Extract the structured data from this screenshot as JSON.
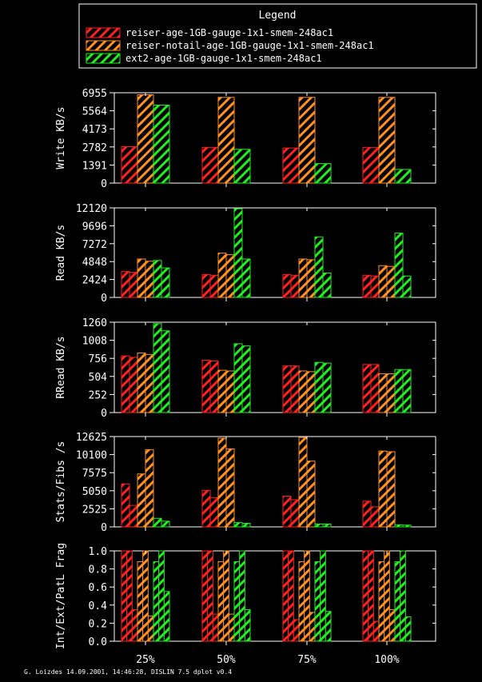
{
  "colors": {
    "background": "#000000",
    "axis": "#ffffff",
    "text": "#ffffff",
    "red": "#ff2020",
    "orange": "#ff9020",
    "green": "#20ee20"
  },
  "legend": {
    "title": "Legend",
    "entries": [
      {
        "label": "reiser-age-1GB-gauge-1x1-smem-248ac1",
        "color": "#ff2020"
      },
      {
        "label": "reiser-notail-age-1GB-gauge-1x1-smem-248ac1",
        "color": "#ff9020"
      },
      {
        "label": "ext2-age-1GB-gauge-1x1-smem-248ac1",
        "color": "#20ee20"
      }
    ]
  },
  "footer": "G. Loizdes 14.09.2001, 14:46:28, DISLIN 7.5 dplot v0.4",
  "chart_data": [
    {
      "type": "bar",
      "ylabel": "Write KB/s",
      "categories": [
        "25%",
        "50%",
        "75%",
        "100%"
      ],
      "ylim": [
        0,
        6955
      ],
      "yticks": [
        "0",
        "1391",
        "2782",
        "4173",
        "5564",
        "6955"
      ],
      "groups": [
        {
          "red": [
            2800
          ],
          "orange": [
            6800
          ],
          "green": [
            6000
          ]
        },
        {
          "red": [
            2750
          ],
          "orange": [
            6600
          ],
          "green": [
            2600
          ]
        },
        {
          "red": [
            2700
          ],
          "orange": [
            6600
          ],
          "green": [
            1500
          ]
        },
        {
          "red": [
            2750
          ],
          "orange": [
            6600
          ],
          "green": [
            1050
          ]
        }
      ]
    },
    {
      "type": "bar",
      "ylabel": "Read KB/s",
      "categories": [
        "25%",
        "50%",
        "75%",
        "100%"
      ],
      "ylim": [
        0,
        12120
      ],
      "yticks": [
        "0",
        "2424",
        "4848",
        "7272",
        "9696",
        "12120"
      ],
      "groups": [
        {
          "red": [
            3500,
            3400
          ],
          "orange": [
            5200,
            4900
          ],
          "green": [
            5000,
            4000
          ]
        },
        {
          "red": [
            3100,
            3000
          ],
          "orange": [
            6000,
            5800
          ],
          "green": [
            12000,
            5200
          ]
        },
        {
          "red": [
            3100,
            3000
          ],
          "orange": [
            5200,
            5100
          ],
          "green": [
            8200,
            3300
          ]
        },
        {
          "red": [
            3000,
            2900
          ],
          "orange": [
            4300,
            4200
          ],
          "green": [
            8700,
            2900
          ]
        }
      ]
    },
    {
      "type": "bar",
      "ylabel": "RRead KB/s",
      "categories": [
        "25%",
        "50%",
        "75%",
        "100%"
      ],
      "ylim": [
        0,
        1260
      ],
      "yticks": [
        "0",
        "252",
        "504",
        "756",
        "1008",
        "1260"
      ],
      "groups": [
        {
          "red": [
            790,
            770
          ],
          "orange": [
            830,
            810
          ],
          "green": [
            1240,
            1140
          ]
        },
        {
          "red": [
            730,
            720
          ],
          "orange": [
            590,
            580
          ],
          "green": [
            960,
            930
          ]
        },
        {
          "red": [
            650,
            650
          ],
          "orange": [
            580,
            570
          ],
          "green": [
            700,
            690
          ]
        },
        {
          "red": [
            670,
            670
          ],
          "orange": [
            540,
            540
          ],
          "green": [
            600,
            600
          ]
        }
      ]
    },
    {
      "type": "bar",
      "ylabel": "Stats/Fibs /s",
      "categories": [
        "25%",
        "50%",
        "75%",
        "100%"
      ],
      "ylim": [
        0,
        12625
      ],
      "yticks": [
        "0",
        "2525",
        "5050",
        "7575",
        "10100",
        "12625"
      ],
      "groups": [
        {
          "red": [
            6000,
            3000
          ],
          "orange": [
            7400,
            10800
          ],
          "green": [
            1200,
            800
          ]
        },
        {
          "red": [
            5100,
            4100
          ],
          "orange": [
            12400,
            10900
          ],
          "green": [
            600,
            500
          ]
        },
        {
          "red": [
            4300,
            3800
          ],
          "orange": [
            12500,
            9200
          ],
          "green": [
            400,
            400
          ]
        },
        {
          "red": [
            3600,
            2800
          ],
          "orange": [
            10600,
            10500
          ],
          "green": [
            300,
            250
          ]
        }
      ]
    },
    {
      "type": "bar",
      "ylabel": "Int/Ext/PatL Frag",
      "categories": [
        "25%",
        "50%",
        "75%",
        "100%"
      ],
      "ylim": [
        0,
        1.0
      ],
      "yticks": [
        "0.0",
        "0.2",
        "0.4",
        "0.6",
        "0.8",
        "1.0"
      ],
      "groups": [
        {
          "red": [
            1.0,
            1.0,
            0.35
          ],
          "orange": [
            0.88,
            1.0,
            0.28
          ],
          "green": [
            0.88,
            1.0,
            0.55
          ]
        },
        {
          "red": [
            1.0,
            1.0,
            0.3
          ],
          "orange": [
            0.88,
            1.0,
            0.3
          ],
          "green": [
            0.88,
            1.0,
            0.35
          ]
        },
        {
          "red": [
            1.0,
            1.0,
            0.24
          ],
          "orange": [
            0.88,
            1.0,
            0.32
          ],
          "green": [
            0.88,
            1.0,
            0.33
          ]
        },
        {
          "red": [
            1.0,
            1.0,
            0.22
          ],
          "orange": [
            0.88,
            1.0,
            0.35
          ],
          "green": [
            0.88,
            1.0,
            0.27
          ]
        }
      ]
    }
  ]
}
